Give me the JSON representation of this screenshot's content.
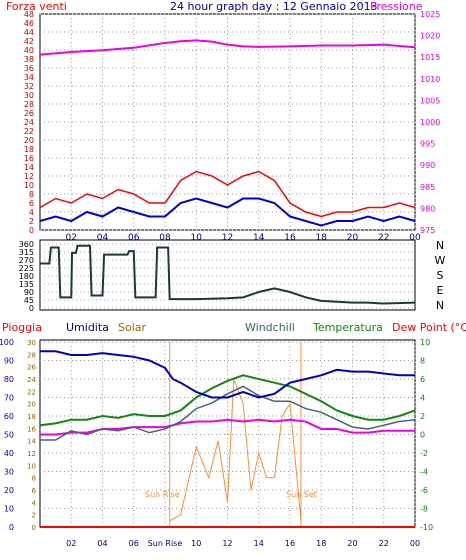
{
  "chart_data": [
    {
      "type": "line",
      "title": "24 hour graph day : 12 Gennaio 2013",
      "left_axis_title": "Forza venti",
      "right_axis_title": "Pressione",
      "x_ticks": [
        "02",
        "04",
        "06",
        "08",
        "10",
        "12",
        "14",
        "16",
        "18",
        "20",
        "22",
        "00"
      ],
      "left_ticks": [
        "0",
        "2",
        "4",
        "6",
        "8",
        "10",
        "12",
        "14",
        "16",
        "18",
        "20",
        "22",
        "24",
        "26",
        "28",
        "30",
        "32",
        "34",
        "36",
        "38",
        "40",
        "42",
        "44",
        "46",
        "48"
      ],
      "right_ticks": [
        "975",
        "980",
        "985",
        "990",
        "995",
        "1000",
        "1005",
        "1010",
        "1015",
        "1020",
        "1025"
      ],
      "ylim_left": [
        0,
        48
      ],
      "ylim_right": [
        975,
        1025
      ],
      "grid": true,
      "colors": {
        "gust": "#ff0000",
        "wind": "#0000dd",
        "pressure": "#ee00ee"
      },
      "series": {
        "pressure": {
          "x": [
            0,
            2,
            4,
            6,
            8,
            9,
            10,
            11,
            12,
            13,
            14,
            16,
            18,
            20,
            22,
            23,
            24
          ],
          "y": [
            1015.6,
            1016.2,
            1016.6,
            1017.2,
            1018.3,
            1018.7,
            1018.9,
            1018.6,
            1017.9,
            1017.5,
            1017.4,
            1017.5,
            1017.7,
            1017.7,
            1017.9,
            1017.6,
            1017.3
          ]
        },
        "wind": {
          "x": [
            0,
            1,
            2,
            3,
            4,
            5,
            6,
            7,
            8,
            9,
            10,
            11,
            12,
            13,
            14,
            15,
            16,
            17,
            18,
            19,
            20,
            21,
            22,
            23,
            24
          ],
          "y": [
            2,
            3,
            2,
            4,
            3,
            5,
            4,
            3,
            3,
            6,
            7,
            6,
            5,
            7,
            7,
            6,
            3,
            2,
            1,
            2,
            2,
            3,
            2,
            3,
            2
          ]
        },
        "gust": {
          "x": [
            0,
            1,
            2,
            3,
            4,
            5,
            6,
            7,
            8,
            9,
            10,
            11,
            12,
            13,
            14,
            15,
            16,
            17,
            18,
            19,
            20,
            21,
            22,
            23,
            24
          ],
          "y": [
            5,
            7,
            6,
            8,
            7,
            9,
            8,
            6,
            6,
            11,
            13,
            12,
            10,
            12,
            13,
            11,
            6,
            4,
            3,
            4,
            4,
            5,
            5,
            6,
            5
          ]
        }
      }
    },
    {
      "type": "line",
      "title": "",
      "right_axis_title": "N W S E N",
      "left_ticks": [
        "0",
        "45",
        "90",
        "135",
        "180",
        "225",
        "270",
        "315",
        "360"
      ],
      "ylim": [
        0,
        360
      ],
      "color": "#1a3a3a",
      "series": {
        "direction": {
          "x": [
            0,
            0.6,
            0.7,
            1.2,
            1.3,
            2.0,
            2.05,
            2.3,
            2.4,
            3.2,
            3.3,
            4.0,
            4.1,
            5.6,
            5.7,
            6.0,
            6.1,
            7.4,
            7.5,
            8.2,
            8.3,
            10,
            12,
            13,
            14,
            15,
            16,
            17,
            18,
            20,
            21,
            22,
            24
          ],
          "y": [
            250,
            250,
            340,
            340,
            60,
            60,
            310,
            310,
            350,
            350,
            70,
            70,
            300,
            300,
            320,
            320,
            60,
            60,
            340,
            340,
            50,
            50,
            55,
            60,
            90,
            110,
            90,
            60,
            40,
            30,
            30,
            25,
            30
          ]
        }
      }
    },
    {
      "type": "line",
      "labels": {
        "rain": "Pioggia",
        "humidity": "Umidita",
        "solar": "Solar",
        "windchill": "Windchill",
        "temperature": "Temperatura",
        "dewpoint": "Dew Point (°C)"
      },
      "x_ticks": [
        "02",
        "04",
        "06",
        "Sun Rise",
        "10",
        "12",
        "14",
        "16",
        "18",
        "20",
        "22",
        "00"
      ],
      "left_ticks_a": [
        "0",
        "10",
        "20",
        "30",
        "40",
        "50",
        "60",
        "70",
        "80",
        "90",
        "100"
      ],
      "left_ticks_b": [
        "0",
        "2",
        "4",
        "6",
        "8",
        "10",
        "12",
        "14",
        "16",
        "18",
        "20",
        "22",
        "24",
        "26",
        "28",
        "30"
      ],
      "right_ticks": [
        "-10",
        "-8",
        "-6",
        "-4",
        "-2",
        "0",
        "2",
        "4",
        "6",
        "8",
        "10"
      ],
      "ylim_humidity": [
        0,
        100
      ],
      "ylim_temp": [
        -10,
        10
      ],
      "annotations": {
        "sunrise": "Sun Rise",
        "sunset": "Sun Set"
      },
      "sunrise_hour": 8.3,
      "sunset_hour": 16.7,
      "colors": {
        "rain": "#ff0000",
        "humidity": "#0000cc",
        "solar": "#ff8c3a",
        "windchill": "#446677",
        "temperature": "#118811",
        "dewpoint": "#ee00ee",
        "sun_line": "#ff8c3a"
      },
      "series": {
        "humidity": {
          "x": [
            0,
            1,
            2,
            3,
            4,
            5,
            6,
            7,
            8,
            8.5,
            9,
            10,
            11,
            12,
            13,
            14,
            15,
            16,
            17,
            18,
            19,
            20,
            21,
            22,
            23,
            24
          ],
          "y": [
            95,
            95,
            93,
            93,
            94,
            93,
            92,
            90,
            86,
            80,
            78,
            73,
            70,
            70,
            73,
            70,
            72,
            78,
            80,
            82,
            85,
            84,
            84,
            83,
            82,
            82
          ]
        },
        "temperature": {
          "x": [
            0,
            1,
            2,
            3,
            4,
            5,
            6,
            7,
            8,
            9,
            10,
            11,
            12,
            13,
            14,
            15,
            16,
            17,
            18,
            19,
            20,
            21,
            22,
            23,
            24
          ],
          "y": [
            1.0,
            1.2,
            1.6,
            1.6,
            2.0,
            1.8,
            2.2,
            2.0,
            2.0,
            2.6,
            4.0,
            5.0,
            5.8,
            6.4,
            6.0,
            5.6,
            5.2,
            4.4,
            3.6,
            2.6,
            2.0,
            1.6,
            1.6,
            2.0,
            2.6
          ]
        },
        "windchill": {
          "x": [
            0,
            1,
            2,
            3,
            4,
            5,
            6,
            7,
            8,
            9,
            10,
            11,
            12,
            13,
            14,
            15,
            16,
            17,
            18,
            19,
            20,
            21,
            22,
            23,
            24
          ],
          "y": [
            -0.6,
            -0.6,
            0.4,
            0,
            0.6,
            0.4,
            0.8,
            0.2,
            0.6,
            1.4,
            2.8,
            3.4,
            4.4,
            5.2,
            4.2,
            3.6,
            3.6,
            2.8,
            2.4,
            1.6,
            0.8,
            0.6,
            1.0,
            1.4,
            1.6
          ]
        },
        "dewpoint": {
          "x": [
            0,
            1,
            2,
            3,
            4,
            5,
            6,
            7,
            8,
            9,
            10,
            11,
            12,
            13,
            14,
            15,
            16,
            17,
            18,
            19,
            20,
            21,
            22,
            23,
            24
          ],
          "y": [
            0,
            0,
            0.2,
            0.2,
            0.6,
            0.6,
            0.8,
            0.8,
            0.8,
            1.2,
            1.4,
            1.4,
            1.6,
            1.4,
            1.6,
            1.4,
            1.6,
            1.4,
            0.6,
            0.6,
            0.2,
            0.2,
            0.4,
            0.4,
            0.4
          ]
        },
        "solar": {
          "x": [
            8.3,
            9,
            10,
            10.8,
            11.4,
            12,
            12.4,
            13,
            13.5,
            14,
            14.5,
            15,
            15.5,
            16,
            16.7
          ],
          "y": [
            1,
            2,
            13,
            8,
            14,
            4,
            24,
            20,
            6,
            12,
            8,
            8,
            18,
            20,
            1
          ]
        },
        "rain": {
          "x": [
            0,
            24
          ],
          "y": [
            0,
            0
          ]
        }
      }
    }
  ]
}
